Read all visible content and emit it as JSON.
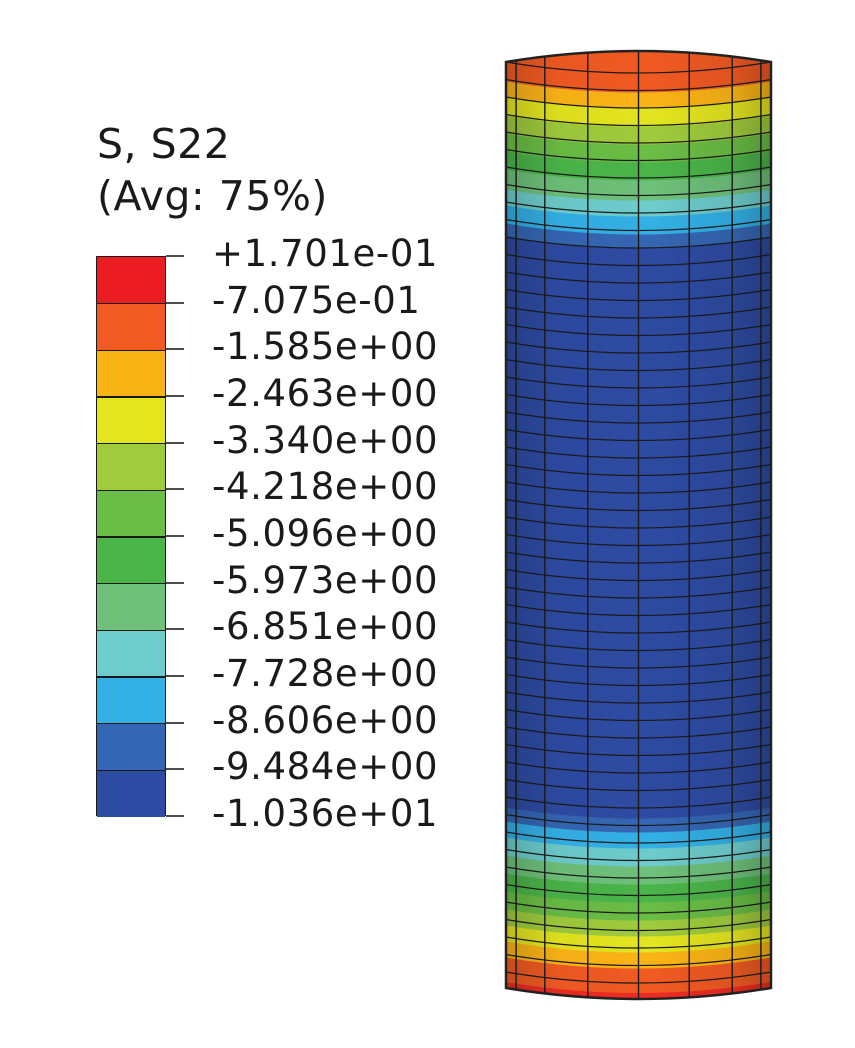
{
  "legend": {
    "title_line1": "S, S22",
    "title_line2": "(Avg: 75%)",
    "labels": [
      "+1.701e-01",
      "-7.075e-01",
      "-1.585e+00",
      "-2.463e+00",
      "-3.340e+00",
      "-4.218e+00",
      "-5.096e+00",
      "-5.973e+00",
      "-6.851e+00",
      "-7.728e+00",
      "-8.606e+00",
      "-9.484e+00",
      "-1.036e+01"
    ],
    "band_colors": [
      "#ec1c24",
      "#f15a22",
      "#fbb416",
      "#e3e51f",
      "#9fcb3c",
      "#6abd45",
      "#4bb549",
      "#6ec07a",
      "#6dcccc",
      "#33b0e6",
      "#3566b3",
      "#2e4ba3"
    ]
  }
}
